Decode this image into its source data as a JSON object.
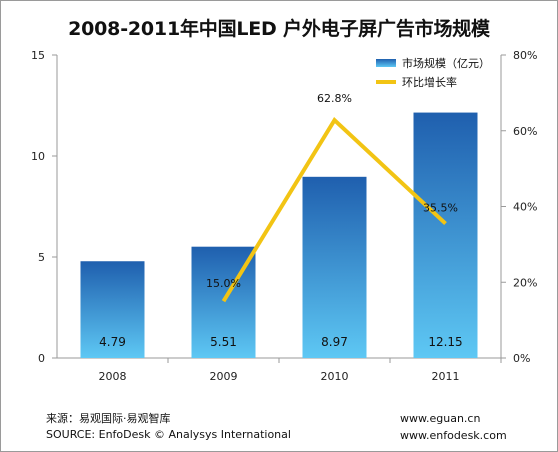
{
  "chart_data": {
    "type": "bar",
    "title": "2008-2011年中国LED 户外电子屏广告市场规模",
    "categories": [
      "2008",
      "2009",
      "2010",
      "2011"
    ],
    "series": [
      {
        "name": "市场规模（亿元）",
        "type": "bar",
        "axis": "left",
        "values": [
          4.79,
          5.51,
          8.97,
          12.15
        ],
        "labels": [
          "4.79",
          "5.51",
          "8.97",
          "12.15"
        ]
      },
      {
        "name": "环比增长率",
        "type": "line",
        "axis": "right",
        "values": [
          null,
          15.0,
          62.8,
          35.5
        ],
        "labels": [
          "",
          "15.0%",
          "62.8%",
          "35.5%"
        ]
      }
    ],
    "y_left": {
      "range": [
        0,
        15
      ],
      "ticks": [
        "0",
        "5",
        "10",
        "15"
      ]
    },
    "y_right": {
      "range": [
        0,
        80
      ],
      "ticks": [
        "0%",
        "20%",
        "40%",
        "60%",
        "80%"
      ]
    },
    "grid": false,
    "legend": "top-right",
    "colors": {
      "bar_top": "#1f5fae",
      "bar_bottom": "#5ec8f4",
      "line": "#f2c414",
      "axis": "#9a9a9a"
    }
  },
  "footer": {
    "source_cn": "来源：易观国际·易观智库",
    "source_en": "SOURCE: EnfoDesk © Analysys International",
    "url1": "www.eguan.cn",
    "url2": "www.enfodesk.com"
  }
}
